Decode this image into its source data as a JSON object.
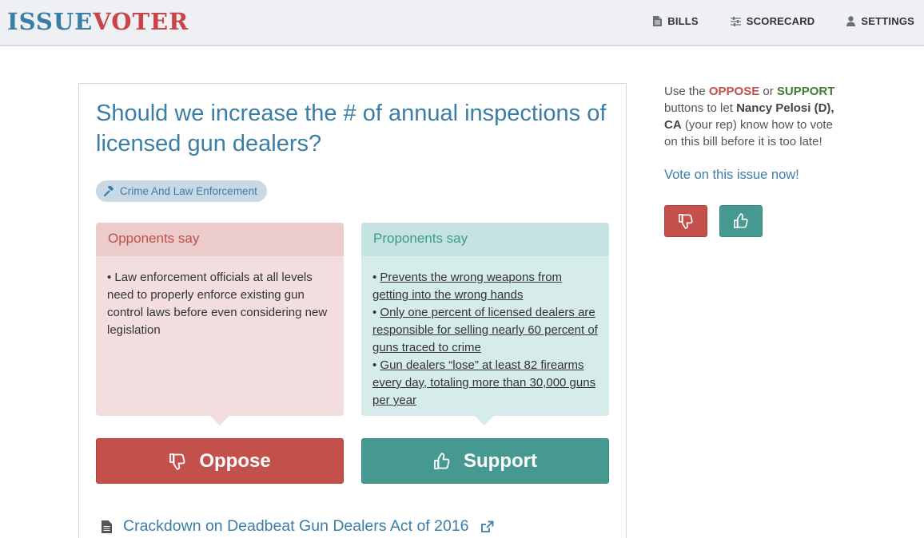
{
  "header": {
    "logo_part1": "ISSUE",
    "logo_part2": "VOTER",
    "nav": [
      {
        "label": "BILLS",
        "icon": "document-icon"
      },
      {
        "label": "SCORECARD",
        "icon": "sliders-icon"
      },
      {
        "label": "SETTINGS",
        "icon": "user-icon"
      }
    ]
  },
  "issue": {
    "question": "Should we increase the # of annual inspections of licensed gun dealers?",
    "tag": "Crime And Law Enforcement",
    "opponents": {
      "heading": "Opponents say",
      "points": [
        "• Law enforcement officials at all levels need to properly enforce existing gun control laws before even considering new legislation"
      ]
    },
    "proponents": {
      "heading": "Proponents say",
      "points": [
        "Prevents the wrong weapons from getting into the wrong hands",
        "Only one percent of licensed dealers are responsible for selling nearly 60 percent of guns traced to crime",
        "Gun dealers “lose” at least 82 firearms every day, totaling more than 30,000 guns per year"
      ]
    },
    "oppose_label": "Oppose",
    "support_label": "Support",
    "bill_title": "Crackdown on Deadbeat Gun Dealers Act of 2016"
  },
  "sidebar": {
    "cta_prefix": "Use the ",
    "oppose_word": "OPPOSE",
    "or_word": " or ",
    "support_word": "SUPPORT",
    "cta_mid": " buttons to let ",
    "rep_name": "Nancy Pelosi (D), CA",
    "cta_suffix": " (your rep) know how to vote on this bill before it is too late!",
    "vote_now": "Vote on this issue now!"
  },
  "colors": {
    "brand_blue": "#3a7ea6",
    "brand_red": "#c9434a",
    "oppose": "#c4504c",
    "support": "#459990"
  }
}
